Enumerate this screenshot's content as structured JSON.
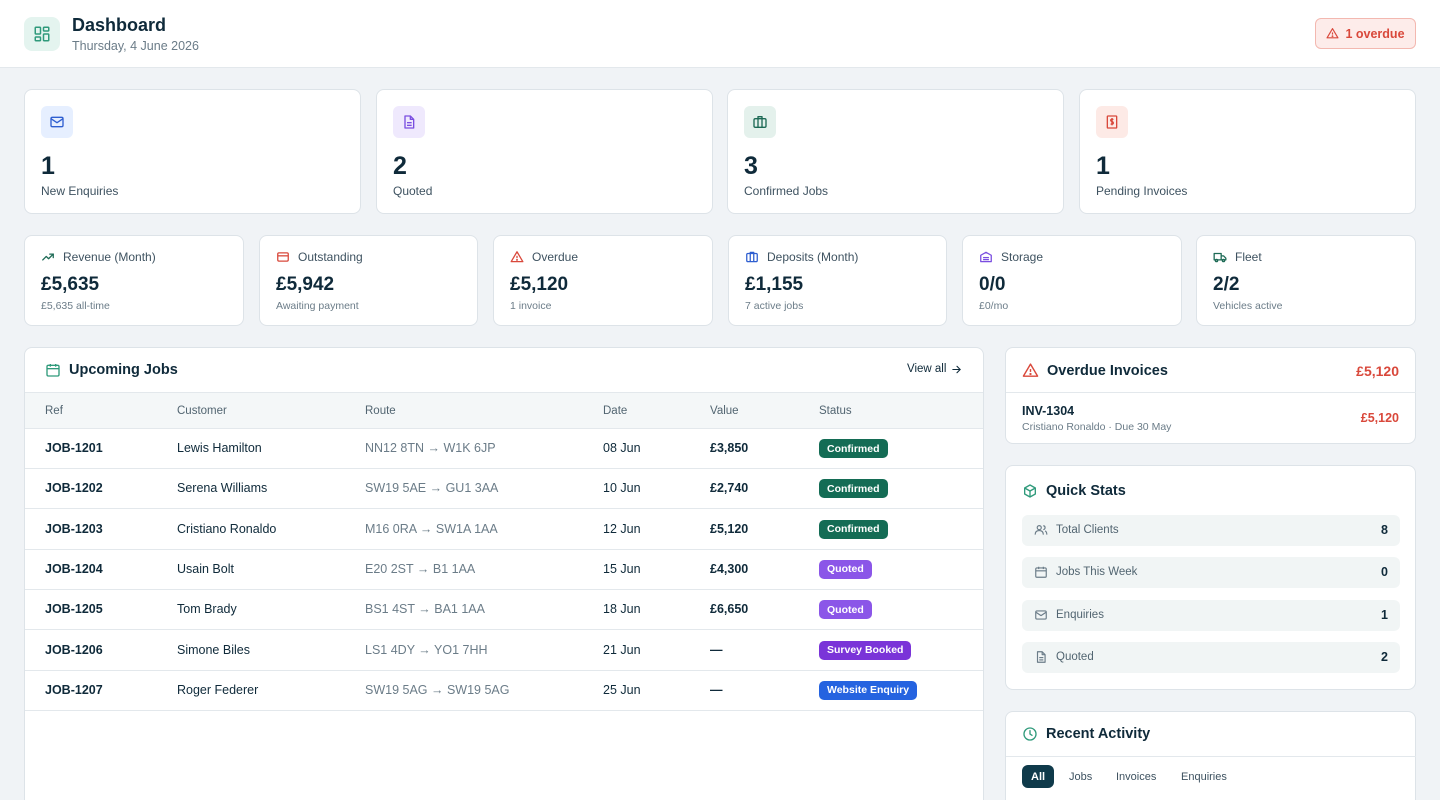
{
  "header": {
    "title": "Dashboard",
    "date": "Thursday, 4 June 2026",
    "overdue_badge": "1 overdue"
  },
  "summary_cards": [
    {
      "icon": "mail-icon",
      "value": "1",
      "label": "New Enquiries",
      "icon_bg": "#e6efff",
      "icon_color": "#2f5fd0"
    },
    {
      "icon": "document-icon",
      "value": "2",
      "label": "Quoted",
      "icon_bg": "#efe9fd",
      "icon_color": "#7a4ee0"
    },
    {
      "icon": "briefcase-icon",
      "value": "3",
      "label": "Confirmed Jobs",
      "icon_bg": "#e4f1ec",
      "icon_color": "#1d6a55"
    },
    {
      "icon": "invoice-icon",
      "value": "1",
      "label": "Pending Invoices",
      "icon_bg": "#fdeae6",
      "icon_color": "#d9483b"
    }
  ],
  "metrics": [
    {
      "icon": "trending-up-icon",
      "label": "Revenue (Month)",
      "value": "£5,635",
      "sub": "£5,635 all-time"
    },
    {
      "icon": "credit-card-icon",
      "label": "Outstanding",
      "value": "£5,942",
      "sub": "Awaiting payment"
    },
    {
      "icon": "warning-icon",
      "label": "Overdue",
      "value": "£5,120",
      "sub": "1 invoice"
    },
    {
      "icon": "wallet-icon",
      "label": "Deposits (Month)",
      "value": "£1,155",
      "sub": "7 active jobs"
    },
    {
      "icon": "warehouse-icon",
      "label": "Storage",
      "value": "0/0",
      "sub": "£0/mo"
    },
    {
      "icon": "truck-icon",
      "label": "Fleet",
      "value": "2/2",
      "sub": "Vehicles active"
    }
  ],
  "upcoming_jobs": {
    "title": "Upcoming Jobs",
    "view_all": "View all",
    "columns": [
      "Ref",
      "Customer",
      "Route",
      "Date",
      "Value",
      "Status"
    ],
    "rows": [
      {
        "ref": "JOB-1201",
        "customer": "Lewis Hamilton",
        "route": "NN12 8TN → W1K 6JP",
        "date": "08 Jun",
        "value": "£3,850",
        "status": "Confirmed",
        "status_color": "#146c55"
      },
      {
        "ref": "JOB-1202",
        "customer": "Serena Williams",
        "route": "SW19 5AE → GU1 3AA",
        "date": "10 Jun",
        "value": "£2,740",
        "status": "Confirmed",
        "status_color": "#146c55"
      },
      {
        "ref": "JOB-1203",
        "customer": "Cristiano Ronaldo",
        "route": "M16 0RA → SW1A 1AA",
        "date": "12 Jun",
        "value": "£5,120",
        "status": "Confirmed",
        "status_color": "#146c55"
      },
      {
        "ref": "JOB-1204",
        "customer": "Usain Bolt",
        "route": "E20 2ST → B1 1AA",
        "date": "15 Jun",
        "value": "£4,300",
        "status": "Quoted",
        "status_color": "#8b56e8"
      },
      {
        "ref": "JOB-1205",
        "customer": "Tom Brady",
        "route": "BS1 4ST → BA1 1AA",
        "date": "18 Jun",
        "value": "£6,650",
        "status": "Quoted",
        "status_color": "#8b56e8"
      },
      {
        "ref": "JOB-1206",
        "customer": "Simone Biles",
        "route": "LS1 4DY → YO1 7HH",
        "date": "21 Jun",
        "value": "—",
        "status": "Survey Booked",
        "status_color": "#7a34d8"
      },
      {
        "ref": "JOB-1207",
        "customer": "Roger Federer",
        "route": "SW19 5AG → SW19 5AG",
        "date": "25 Jun",
        "value": "—",
        "status": "Website Enquiry",
        "status_color": "#2563e0"
      }
    ]
  },
  "overdue_invoices": {
    "title": "Overdue Invoices",
    "total": "£5,120",
    "items": [
      {
        "id": "INV-1304",
        "meta": "Cristiano Ronaldo · Due 30 May",
        "amount": "£5,120"
      }
    ]
  },
  "quick_stats": {
    "title": "Quick Stats",
    "items": [
      {
        "icon": "users-icon",
        "label": "Total Clients",
        "value": "8"
      },
      {
        "icon": "calendar-icon",
        "label": "Jobs This Week",
        "value": "0"
      },
      {
        "icon": "mail-icon",
        "label": "Enquiries",
        "value": "1"
      },
      {
        "icon": "document-icon",
        "label": "Quoted",
        "value": "2"
      }
    ]
  },
  "recent_activity": {
    "title": "Recent Activity",
    "tabs": [
      "All",
      "Jobs",
      "Invoices",
      "Enquiries"
    ],
    "active_tab": "All"
  },
  "colors": {
    "accent": "#1d7a62",
    "danger": "#d9483b",
    "navy": "#0f2a3a"
  }
}
